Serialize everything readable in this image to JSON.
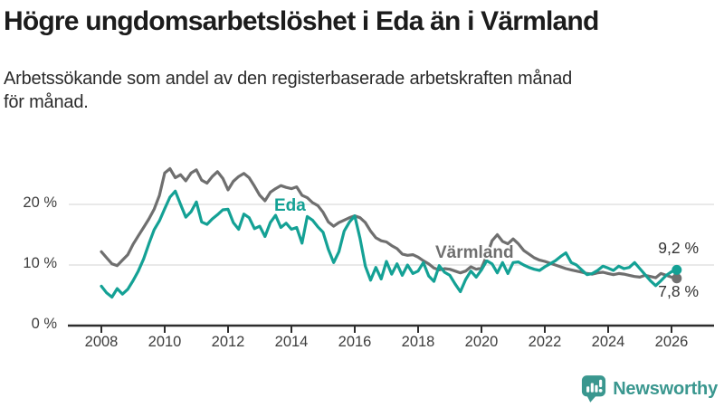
{
  "header": {
    "title": "Högre ungdomsarbetslöshet i Eda än i Värmland",
    "subtitle_line1": "Arbetssökande som andel av den registerbaserade arbetskraften månad",
    "subtitle_line2": "för månad."
  },
  "branding": {
    "name": "Newsworthy",
    "icon": "newsworthy-bar-chart-bubble-icon",
    "color": "#3a978f"
  },
  "colors": {
    "eda_line": "#14a195",
    "varmland_line": "#6f6f6f",
    "axis": "#2d2d2d",
    "gridline": "#dcdcdc",
    "title_text": "#1c1c1c",
    "tick_text": "#3d3d3d",
    "value_text": "#333333"
  },
  "chart_data": {
    "type": "line",
    "title": "Högre ungdomsarbetslöshet i Eda än i Värmland",
    "subtitle": "Arbetssökande som andel av den registerbaserade arbetskraften månad för månad.",
    "xlabel": "",
    "ylabel": "",
    "x_unit": "year (monthly data)",
    "y_unit": "%",
    "x_start": 2008.0,
    "x_step_years": 0.16667,
    "x_ticks": [
      2008,
      2010,
      2012,
      2014,
      2016,
      2018,
      2020,
      2022,
      2024,
      2026
    ],
    "y_ticks": [
      {
        "value": 0,
        "label": "0 %"
      },
      {
        "value": 10,
        "label": "10 %"
      },
      {
        "value": 20,
        "label": "20 %"
      }
    ],
    "ylim": [
      0,
      27
    ],
    "xlim": [
      2007.5,
      2026.7
    ],
    "grid": "horizontal",
    "legend_position": "inline-labels",
    "series": [
      {
        "name": "Eda",
        "color": "#14a195",
        "end_label": "9,2 %",
        "end_value": 9.2,
        "values": [
          6.5,
          5.4,
          4.7,
          6.1,
          5.2,
          6.0,
          7.4,
          9.0,
          11.0,
          13.5,
          15.8,
          17.3,
          19.3,
          21.2,
          22.2,
          20.0,
          17.9,
          18.8,
          20.4,
          17.1,
          16.7,
          17.6,
          18.3,
          19.1,
          19.2,
          17.0,
          15.9,
          18.4,
          17.8,
          16.0,
          16.4,
          14.7,
          17.0,
          18.2,
          16.2,
          16.9,
          15.9,
          16.2,
          13.6,
          18.0,
          17.4,
          16.3,
          15.4,
          12.6,
          10.4,
          12.2,
          15.6,
          17.1,
          18.1,
          14.4,
          9.8,
          7.5,
          9.6,
          7.7,
          10.6,
          8.5,
          10.2,
          8.3,
          10.0,
          8.6,
          9.0,
          10.4,
          8.2,
          7.3,
          9.9,
          8.8,
          8.3,
          6.9,
          5.6,
          7.6,
          9.0,
          8.0,
          9.2,
          10.7,
          10.2,
          8.7,
          10.4,
          8.6,
          10.4,
          10.5,
          10.0,
          9.6,
          9.3,
          9.1,
          9.7,
          10.2,
          10.7,
          11.4,
          12.0,
          10.4,
          10.0,
          9.2,
          8.4,
          8.6,
          9.1,
          9.8,
          9.5,
          9.1,
          9.8,
          9.4,
          9.6,
          10.4,
          9.4,
          8.4,
          7.4,
          6.6,
          7.4,
          8.3,
          8.9,
          9.2
        ]
      },
      {
        "name": "Värmland",
        "color": "#6f6f6f",
        "end_label": "7,8 %",
        "end_value": 7.8,
        "values": [
          12.2,
          11.2,
          10.2,
          9.9,
          10.8,
          11.7,
          13.4,
          14.8,
          16.2,
          17.6,
          19.2,
          21.5,
          25.2,
          25.9,
          24.4,
          24.9,
          23.9,
          25.2,
          25.7,
          24.0,
          23.5,
          24.6,
          25.4,
          24.3,
          22.4,
          23.8,
          24.6,
          25.1,
          24.4,
          23.0,
          21.5,
          20.6,
          22.0,
          22.6,
          23.1,
          22.8,
          22.6,
          22.9,
          21.5,
          21.1,
          20.3,
          19.8,
          18.7,
          17.1,
          16.4,
          17.0,
          17.4,
          17.8,
          18.1,
          17.8,
          17.0,
          15.6,
          14.5,
          14.0,
          13.8,
          13.2,
          12.7,
          11.8,
          11.6,
          11.7,
          11.3,
          10.7,
          10.2,
          9.5,
          9.2,
          9.4,
          9.3,
          9.0,
          8.7,
          9.0,
          9.7,
          9.3,
          9.5,
          11.5,
          14.0,
          15.0,
          13.9,
          13.5,
          14.3,
          13.5,
          12.4,
          11.8,
          11.2,
          10.8,
          10.6,
          10.3,
          10.0,
          9.7,
          9.4,
          9.2,
          9.0,
          8.8,
          8.6,
          8.5,
          8.7,
          8.8,
          8.6,
          8.4,
          8.6,
          8.5,
          8.3,
          8.1,
          8.0,
          8.3,
          8.1,
          7.9,
          8.6,
          8.3,
          8.0,
          7.8
        ]
      }
    ]
  }
}
